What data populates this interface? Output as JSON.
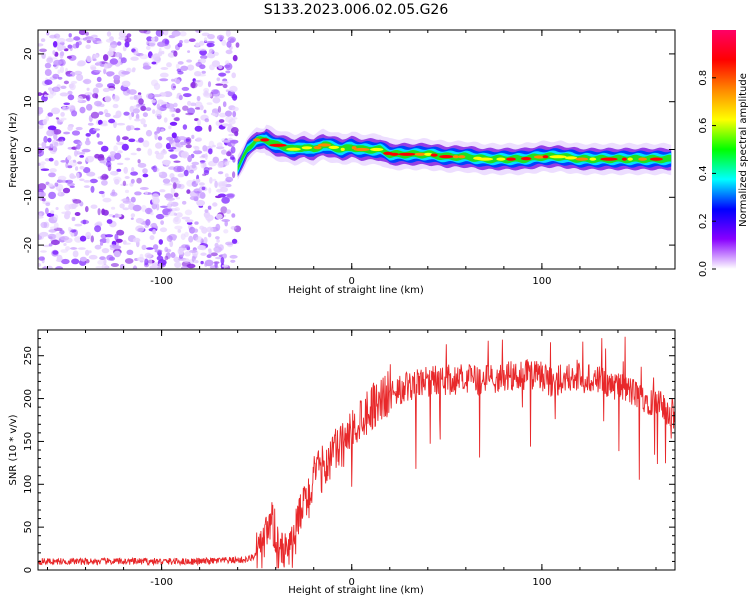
{
  "title": "S133.2023.006.02.05.G26",
  "chart_data": [
    {
      "type": "heatmap",
      "name": "spectrogram",
      "xlabel": "Height of straight line (km)",
      "ylabel": "Frequency (Hz)",
      "xlim": [
        -165,
        170
      ],
      "ylim": [
        -25,
        25
      ],
      "xticks": [
        -100,
        0,
        100
      ],
      "xtick_labels": [
        "-100",
        "0",
        "100"
      ],
      "yticks": [
        -20,
        -10,
        0,
        10,
        20
      ],
      "ytick_labels": [
        "-20",
        "-10",
        "0",
        "10",
        "20"
      ],
      "noise_region_km": [
        -165,
        -60
      ],
      "signal_track": {
        "x": [
          -60,
          -55,
          -50,
          -45,
          -40,
          -35,
          -30,
          -25,
          -20,
          -15,
          -10,
          -5,
          0,
          5,
          10,
          15,
          20,
          30,
          40,
          50,
          60,
          70,
          80,
          90,
          100,
          110,
          120,
          130,
          140,
          150,
          160,
          168
        ],
        "freq": [
          -4,
          0,
          2,
          2,
          1,
          0.5,
          0,
          0.5,
          0,
          1,
          0.5,
          0,
          0.5,
          0,
          0,
          0,
          -1,
          -1,
          -1,
          -1.5,
          -1.5,
          -2,
          -2,
          -2,
          -1.5,
          -1.5,
          -2,
          -2,
          -2,
          -2,
          -2,
          -2
        ]
      },
      "colorbar": {
        "label": "Normalized spectral amplitude",
        "range": [
          0,
          1
        ],
        "ticks": [
          0.0,
          0.2,
          0.4,
          0.6,
          0.8
        ],
        "tick_labels": [
          "0.0",
          "0.2",
          "0.4",
          "0.6",
          "0.8"
        ],
        "colormap": [
          "#ffffff",
          "#8800ff",
          "#0000ff",
          "#00ffff",
          "#00ff00",
          "#ffff00",
          "#ff8800",
          "#ff0000",
          "#ff0066"
        ]
      }
    },
    {
      "type": "line",
      "name": "snr",
      "xlabel": "Height of straight line (km)",
      "ylabel": "SNR (10 * v/v)",
      "xlim": [
        -165,
        170
      ],
      "ylim": [
        0,
        280
      ],
      "xticks": [
        -100,
        0,
        100
      ],
      "xtick_labels": [
        "-100",
        "0",
        "100"
      ],
      "yticks": [
        0,
        50,
        100,
        150,
        200,
        250
      ],
      "ytick_labels": [
        "0",
        "50",
        "100",
        "150",
        "200",
        "250"
      ],
      "color": "#e8282a",
      "series": [
        {
          "name": "SNR",
          "x": [
            -165,
            -120,
            -80,
            -55,
            -48,
            -45,
            -42,
            -40,
            -36,
            -33,
            -30,
            -28,
            -25,
            -22,
            -20,
            -15,
            -10,
            -5,
            0,
            5,
            10,
            15,
            20,
            25,
            30,
            40,
            50,
            60,
            70,
            80,
            90,
            95,
            100,
            105,
            110,
            120,
            130,
            140,
            150,
            160,
            170
          ],
          "y": [
            10,
            10,
            10,
            12,
            20,
            35,
            55,
            40,
            30,
            20,
            35,
            60,
            75,
            90,
            105,
            120,
            135,
            145,
            160,
            180,
            190,
            200,
            205,
            210,
            215,
            220,
            222,
            222,
            223,
            225,
            228,
            228,
            225,
            220,
            222,
            225,
            220,
            215,
            205,
            195,
            180
          ]
        }
      ]
    }
  ]
}
